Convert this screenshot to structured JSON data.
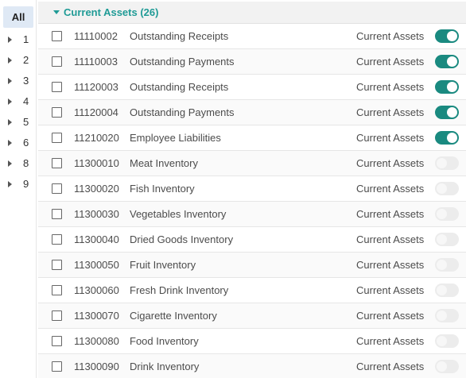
{
  "sidebar": {
    "all_label": "All",
    "items": [
      {
        "label": "1"
      },
      {
        "label": "2"
      },
      {
        "label": "3"
      },
      {
        "label": "4"
      },
      {
        "label": "5"
      },
      {
        "label": "6"
      },
      {
        "label": "8"
      },
      {
        "label": "9"
      }
    ]
  },
  "group": {
    "title": "Current Assets (26)"
  },
  "rows": [
    {
      "code": "11110002",
      "name": "Outstanding Receipts",
      "type": "Current Assets",
      "active": true
    },
    {
      "code": "11110003",
      "name": "Outstanding Payments",
      "type": "Current Assets",
      "active": true
    },
    {
      "code": "11120003",
      "name": "Outstanding Receipts",
      "type": "Current Assets",
      "active": true
    },
    {
      "code": "11120004",
      "name": "Outstanding Payments",
      "type": "Current Assets",
      "active": true
    },
    {
      "code": "11210020",
      "name": "Employee Liabilities",
      "type": "Current Assets",
      "active": true
    },
    {
      "code": "11300010",
      "name": "Meat Inventory",
      "type": "Current Assets",
      "active": false
    },
    {
      "code": "11300020",
      "name": "Fish Inventory",
      "type": "Current Assets",
      "active": false
    },
    {
      "code": "11300030",
      "name": "Vegetables Inventory",
      "type": "Current Assets",
      "active": false
    },
    {
      "code": "11300040",
      "name": "Dried Goods Inventory",
      "type": "Current Assets",
      "active": false
    },
    {
      "code": "11300050",
      "name": "Fruit Inventory",
      "type": "Current Assets",
      "active": false
    },
    {
      "code": "11300060",
      "name": "Fresh Drink Inventory",
      "type": "Current Assets",
      "active": false
    },
    {
      "code": "11300070",
      "name": "Cigarette Inventory",
      "type": "Current Assets",
      "active": false
    },
    {
      "code": "11300080",
      "name": "Food Inventory",
      "type": "Current Assets",
      "active": false
    },
    {
      "code": "11300090",
      "name": "Drink Inventory",
      "type": "Current Assets",
      "active": false
    }
  ],
  "colors": {
    "accent": "#1f9b96",
    "toggle_on": "#1a8a80",
    "toggle_off": "#ececec",
    "selected_bg": "#dfe9f5"
  }
}
